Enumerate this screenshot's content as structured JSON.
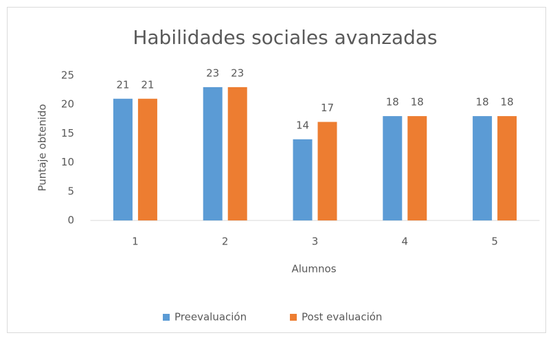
{
  "chart_data": {
    "type": "bar",
    "title": "Habilidades sociales avanzadas",
    "x_label": "Alumnos",
    "y_label": "Puntaje obtenido",
    "categories": [
      "1",
      "2",
      "3",
      "4",
      "5"
    ],
    "series": [
      {
        "name": "Preevaluación",
        "color": "#5b9bd5",
        "values": [
          21,
          23,
          14,
          18,
          18
        ]
      },
      {
        "name": "Post evaluación",
        "color": "#ed7d31",
        "values": [
          21,
          23,
          17,
          18,
          18
        ]
      }
    ],
    "ylim": [
      0,
      25
    ],
    "yticks": [
      0,
      5,
      10,
      15,
      20,
      25
    ],
    "grid": false,
    "legend": "bottom"
  }
}
